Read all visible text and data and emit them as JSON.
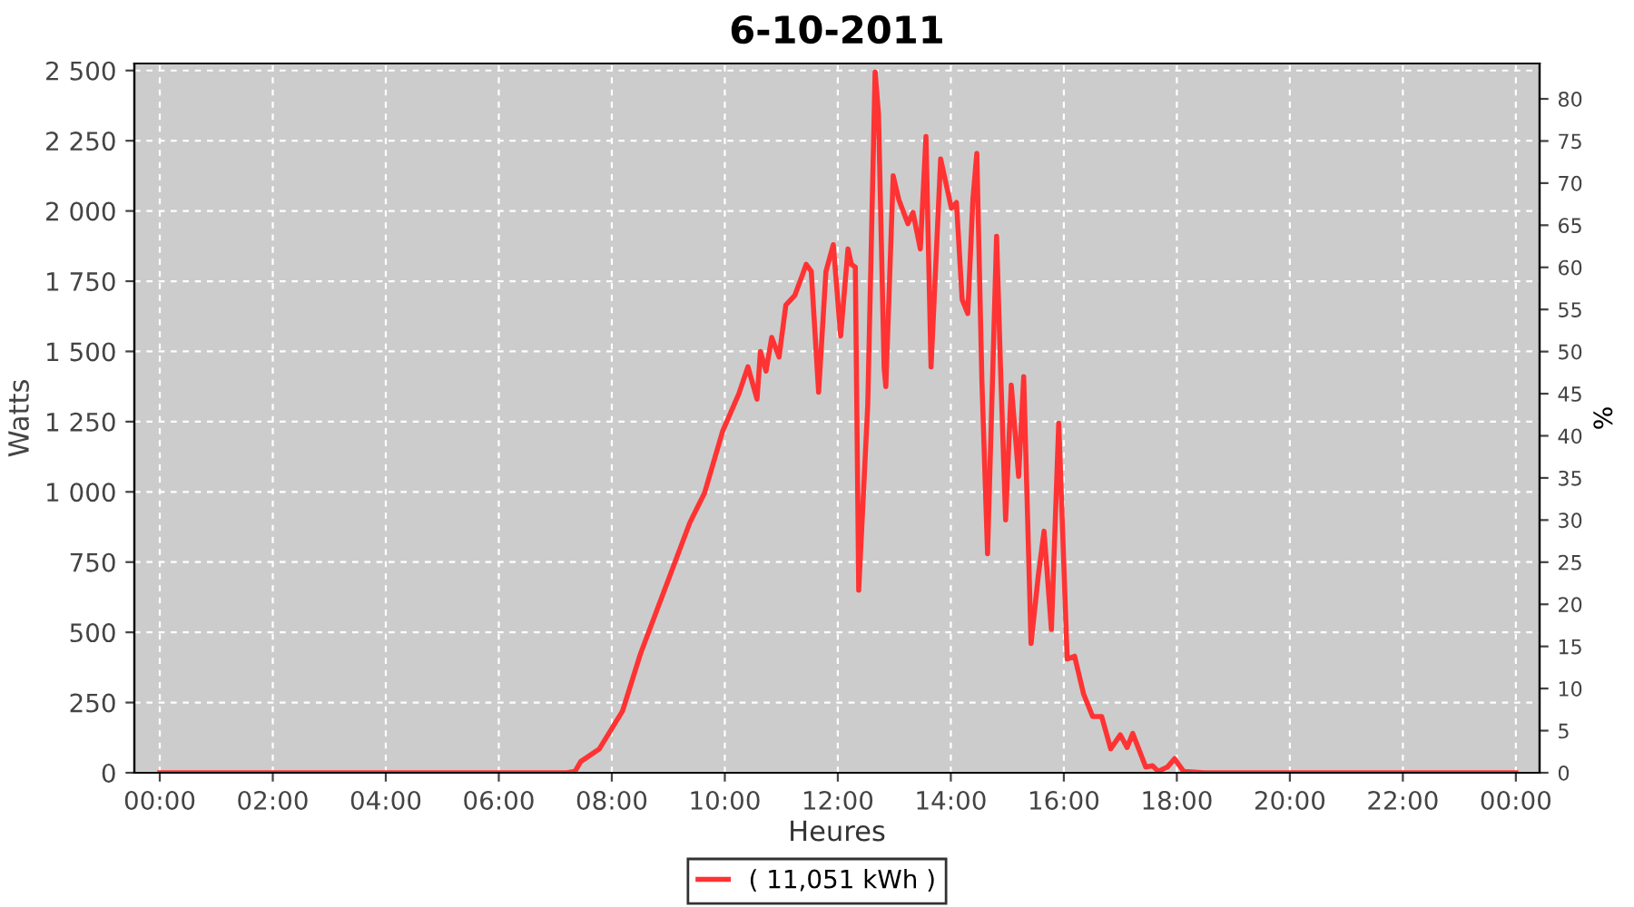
{
  "chart_data": {
    "type": "line",
    "title": "6-10-2011",
    "xlabel": "Heures",
    "ylabel": "Watts",
    "y2label": "%",
    "x": [
      0,
      7.2,
      7.35,
      7.45,
      7.78,
      8.19,
      8.51,
      8.96,
      9.38,
      9.64,
      9.96,
      10.25,
      10.41,
      10.57,
      10.63,
      10.73,
      10.83,
      10.96,
      11.08,
      11.24,
      11.37,
      11.44,
      11.53,
      11.66,
      11.79,
      11.92,
      12.05,
      12.18,
      12.24,
      12.31,
      12.37,
      12.53,
      12.66,
      12.72,
      12.82,
      12.85,
      12.98,
      13.08,
      13.24,
      13.33,
      13.46,
      13.56,
      13.65,
      13.82,
      14.01,
      14.1,
      14.2,
      14.3,
      14.39,
      14.46,
      14.55,
      14.65,
      14.81,
      14.88,
      14.97,
      15.07,
      15.2,
      15.29,
      15.42,
      15.55,
      15.65,
      15.78,
      15.91,
      16.06,
      16.19,
      16.35,
      16.51,
      16.67,
      16.83,
      17.0,
      17.12,
      17.22,
      17.45,
      17.57,
      17.67,
      17.83,
      17.96,
      18.12,
      18.5,
      24
    ],
    "series": [
      {
        "name": "( 11,051 kWh )",
        "color": "#ff3333",
        "values": [
          0,
          0,
          5,
          40,
          85,
          220,
          425,
          665,
          890,
          995,
          1215,
          1350,
          1445,
          1330,
          1500,
          1430,
          1550,
          1480,
          1665,
          1700,
          1770,
          1810,
          1785,
          1355,
          1785,
          1880,
          1555,
          1865,
          1810,
          1800,
          650,
          1310,
          2495,
          2345,
          1440,
          1375,
          2125,
          2040,
          1955,
          1995,
          1865,
          2265,
          1445,
          2185,
          2010,
          2030,
          1685,
          1635,
          2040,
          2205,
          1395,
          780,
          1910,
          1440,
          900,
          1380,
          1055,
          1410,
          460,
          705,
          860,
          510,
          1245,
          405,
          415,
          280,
          200,
          200,
          85,
          135,
          90,
          140,
          20,
          25,
          5,
          20,
          50,
          5,
          0,
          0
        ]
      }
    ],
    "xlim": [
      -0.45,
      24.42
    ],
    "xticks": [
      {
        "value": 0,
        "label": "00:00"
      },
      {
        "value": 2,
        "label": "02:00"
      },
      {
        "value": 4,
        "label": "04:00"
      },
      {
        "value": 6,
        "label": "06:00"
      },
      {
        "value": 8,
        "label": "08:00"
      },
      {
        "value": 10,
        "label": "10:00"
      },
      {
        "value": 12,
        "label": "12:00"
      },
      {
        "value": 14,
        "label": "14:00"
      },
      {
        "value": 16,
        "label": "16:00"
      },
      {
        "value": 18,
        "label": "18:00"
      },
      {
        "value": 20,
        "label": "20:00"
      },
      {
        "value": 22,
        "label": "22:00"
      },
      {
        "value": 24,
        "label": "00:00"
      }
    ],
    "ylim": [
      0,
      2525
    ],
    "yticks": [
      0,
      250,
      500,
      750,
      {
        "value": 1000,
        "label": "1 000"
      },
      {
        "value": 1250,
        "label": "1 250"
      },
      {
        "value": 1500,
        "label": "1 500"
      },
      {
        "value": 1750,
        "label": "1 750"
      },
      {
        "value": 2000,
        "label": "2 000"
      },
      {
        "value": 2250,
        "label": "2 250"
      },
      {
        "value": 2500,
        "label": "2 500"
      }
    ],
    "y2lim": [
      0,
      84.2
    ],
    "y2ticks": [
      0,
      5,
      10,
      15,
      20,
      25,
      30,
      35,
      40,
      45,
      50,
      55,
      60,
      65,
      70,
      75,
      80
    ],
    "grid": true,
    "legend": "bottom",
    "marker": "none",
    "line_style": "solid"
  }
}
